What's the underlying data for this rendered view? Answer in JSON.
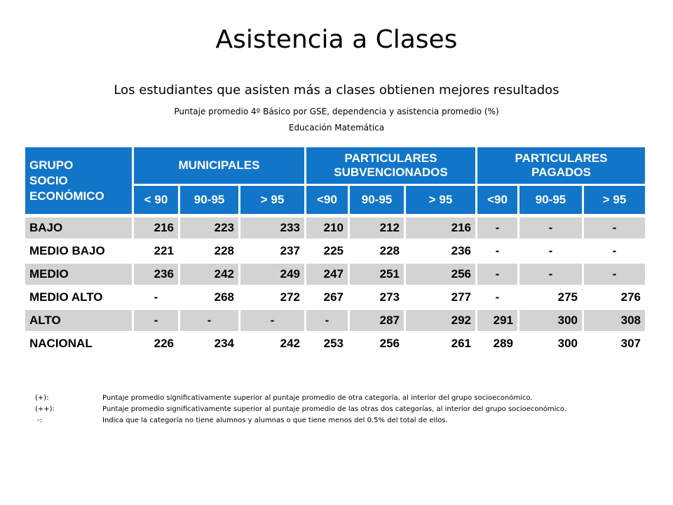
{
  "title": "Asistencia a Clases",
  "subtitle": "Los estudiantes que asisten más a clases obtienen mejores resultados",
  "caption1": "Puntaje promedio 4º Básico por GSE, dependencia y asistencia promedio (%)",
  "caption2": "Educación Matemática",
  "table": {
    "corner": [
      "GRUPO",
      "SOCIO",
      "ECONÓMICO"
    ],
    "groups": [
      {
        "lines": [
          "MUNICIPALES"
        ]
      },
      {
        "lines": [
          "PARTICULARES",
          "SUBVENCIONADOS"
        ]
      },
      {
        "lines": [
          "PARTICULARES",
          "PAGADOS"
        ]
      }
    ],
    "subheaders": [
      "< 90",
      "90-95",
      "> 95",
      "<90",
      "90-95",
      "> 95",
      "<90",
      "90-95",
      "> 95"
    ],
    "rows": [
      {
        "label": "BAJO",
        "shaded": true,
        "values": [
          "216",
          "223",
          "233",
          "210",
          "212",
          "216",
          "-",
          "-",
          "-"
        ]
      },
      {
        "label": "MEDIO BAJO",
        "shaded": false,
        "values": [
          "221",
          "228",
          "237",
          "225",
          "228",
          "236",
          "-",
          "-",
          "-"
        ]
      },
      {
        "label": "MEDIO",
        "shaded": true,
        "values": [
          "236",
          "242",
          "249",
          "247",
          "251",
          "256",
          "-",
          "-",
          "-"
        ]
      },
      {
        "label": "MEDIO ALTO",
        "shaded": false,
        "values": [
          "-",
          "268",
          "272",
          "267",
          "273",
          "277",
          "-",
          "275",
          "276"
        ]
      },
      {
        "label": "ALTO",
        "shaded": true,
        "values": [
          "-",
          "-",
          "-",
          "-",
          "287",
          "292",
          "291",
          "300",
          "308"
        ]
      },
      {
        "label": "NACIONAL",
        "shaded": false,
        "values": [
          "226",
          "234",
          "242",
          "253",
          "256",
          "261",
          "289",
          "300",
          "307"
        ]
      }
    ]
  },
  "notes": [
    {
      "key": "(+):",
      "text": "Puntaje promedio significativamente  superior al puntaje promedio de otra categoría, al interior del grupo socioeconómico."
    },
    {
      "key": "(++):",
      "text": "Puntaje promedio significativamente  superior al puntaje promedio de las otras dos categorías, al interior del grupo socioeconómico."
    },
    {
      "key": " -:",
      "text": "Indica que la categoría no tiene alumnos y alumnas o que tiene menos del 0.5% del total de ellos."
    }
  ],
  "colors": {
    "header": "#1276c8",
    "shaded_row": "#d3d3d3"
  }
}
